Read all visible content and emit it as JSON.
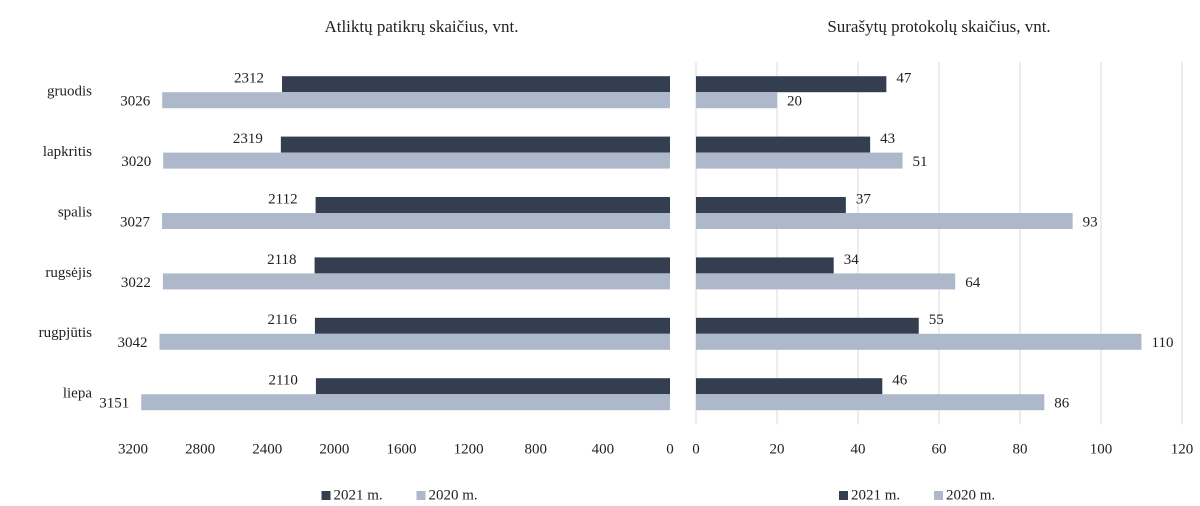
{
  "chart_data": [
    {
      "type": "bar",
      "orientation": "horizontal",
      "title": "Atliktų patikrų skaičius, vnt.",
      "categories": [
        "gruodis",
        "lapkritis",
        "spalis",
        "rugsėjis",
        "rugpjūtis",
        "liepa"
      ],
      "series": [
        {
          "name": "2021 m.",
          "color": "#333f50",
          "values": [
            2312,
            2319,
            2112,
            2118,
            2116,
            2110
          ]
        },
        {
          "name": "2020 m.",
          "color": "#adb9ca",
          "values": [
            3026,
            3020,
            3027,
            3022,
            3042,
            3151
          ]
        }
      ],
      "xlim": [
        3200,
        0
      ],
      "xticks": [
        3200,
        2800,
        2400,
        2000,
        1600,
        1200,
        800,
        400,
        0
      ],
      "grid": false,
      "legend": "bottom"
    },
    {
      "type": "bar",
      "orientation": "horizontal",
      "title": "Surašytų protokolų skaičius, vnt.",
      "series": [
        {
          "name": "2021 m.",
          "color": "#333f50",
          "values": [
            47,
            43,
            37,
            34,
            55,
            46
          ]
        },
        {
          "name": "2020 m.",
          "color": "#adb9ca",
          "values": [
            20,
            51,
            93,
            64,
            110,
            86
          ]
        }
      ],
      "xlim": [
        0,
        120
      ],
      "xticks": [
        0,
        20,
        40,
        60,
        80,
        100,
        120
      ],
      "grid": true,
      "legend": "bottom"
    }
  ]
}
